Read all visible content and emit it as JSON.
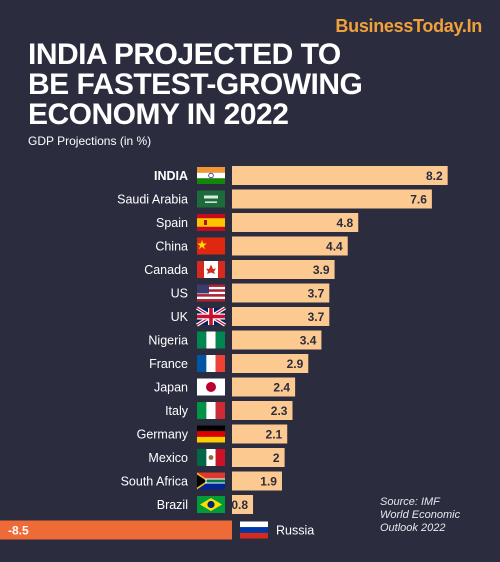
{
  "brand": "BusinessToday.In",
  "headline": [
    "INDIA PROJECTED TO",
    "BE FASTEST-GROWING",
    "ECONOMY IN 2022"
  ],
  "subtitle": "GDP Projections (in %)",
  "source": [
    "Source: IMF",
    "World Economic",
    "Outlook 2022"
  ],
  "colors": {
    "bar_positive": "#fcc990",
    "bar_negative": "#ee6a37",
    "background": "#2b2d3f"
  },
  "chart_data": {
    "type": "bar",
    "orientation": "horizontal",
    "ylabel": "GDP Projections (in %)",
    "categories": [
      "INDIA",
      "Saudi Arabia",
      "Spain",
      "China",
      "Canada",
      "US",
      "UK",
      "Nigeria",
      "France",
      "Japan",
      "Italy",
      "Germany",
      "Mexico",
      "South Africa",
      "Brazil",
      "Russia"
    ],
    "value_labels": [
      "8.2",
      "7.6",
      "4.8",
      "4.4",
      "3.9",
      "3.7",
      "3.7",
      "3.4",
      "2.9",
      "2.4",
      "2.3",
      "2.1",
      "2",
      "1.9",
      "0.8",
      "-8.5"
    ],
    "values": [
      8.2,
      7.6,
      4.8,
      4.4,
      3.9,
      3.7,
      3.7,
      3.4,
      2.9,
      2.4,
      2.3,
      2.1,
      2.0,
      1.9,
      0.8,
      -8.5
    ],
    "flag_icons": [
      "india-flag-icon",
      "saudi-arabia-flag-icon",
      "spain-flag-icon",
      "china-flag-icon",
      "canada-flag-icon",
      "us-flag-icon",
      "uk-flag-icon",
      "nigeria-flag-icon",
      "france-flag-icon",
      "japan-flag-icon",
      "italy-flag-icon",
      "germany-flag-icon",
      "mexico-flag-icon",
      "south-africa-flag-icon",
      "brazil-flag-icon",
      "russia-flag-icon"
    ],
    "highlight": "INDIA"
  }
}
